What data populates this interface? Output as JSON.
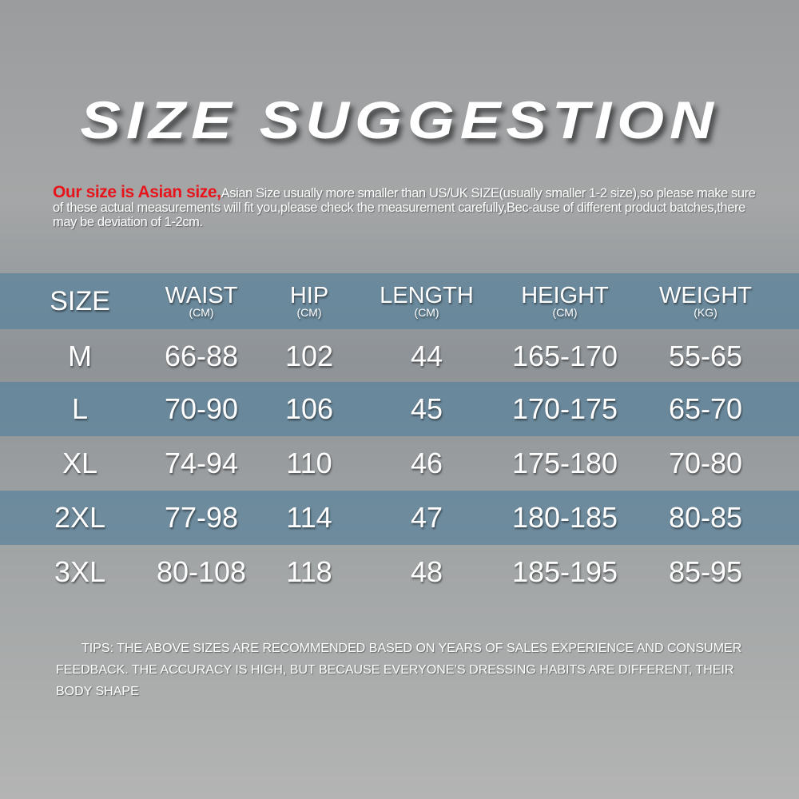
{
  "title": "SIZE SUGGESTION",
  "intro": {
    "highlight": "Our size is Asian size,",
    "text": "Asian Size usually more smaller than US/UK SIZE(usually smaller 1-2 size),so please make sure of these actual measurements will fit you,please check the measurement carefully,Bec-ause of different product batches,there may be deviation of 1-2cm.",
    "highlight_color": "#e8141b"
  },
  "table": {
    "headers": [
      {
        "label": "SIZE",
        "unit": ""
      },
      {
        "label": "WAIST",
        "unit": "(CM)"
      },
      {
        "label": "HIP",
        "unit": "(CM)"
      },
      {
        "label": "LENGTH",
        "unit": "(CM)"
      },
      {
        "label": "HEIGHT",
        "unit": "(CM)"
      },
      {
        "label": "WEIGHT",
        "unit": "(KG)"
      }
    ],
    "rows": [
      [
        "M",
        "66-88",
        "102",
        "44",
        "165-170",
        "55-65"
      ],
      [
        "L",
        "70-90",
        "106",
        "45",
        "170-175",
        "65-70"
      ],
      [
        "XL",
        "74-94",
        "110",
        "46",
        "175-180",
        "70-80"
      ],
      [
        "2XL",
        "77-98",
        "114",
        "47",
        "180-185",
        "80-85"
      ],
      [
        "3XL",
        "80-108",
        "118",
        "48",
        "185-195",
        "85-95"
      ]
    ],
    "band_color": "#5a829b"
  },
  "tips": "TIPS: THE ABOVE SIZES ARE RECOMMENDED BASED ON YEARS OF SALES EXPERIENCE AND CONSUMER FEEDBACK. THE ACCURACY IS HIGH, BUT BECAUSE EVERYONE’S DRESSING HABITS ARE DIFFERENT, THEIR BODY SHAPE"
}
